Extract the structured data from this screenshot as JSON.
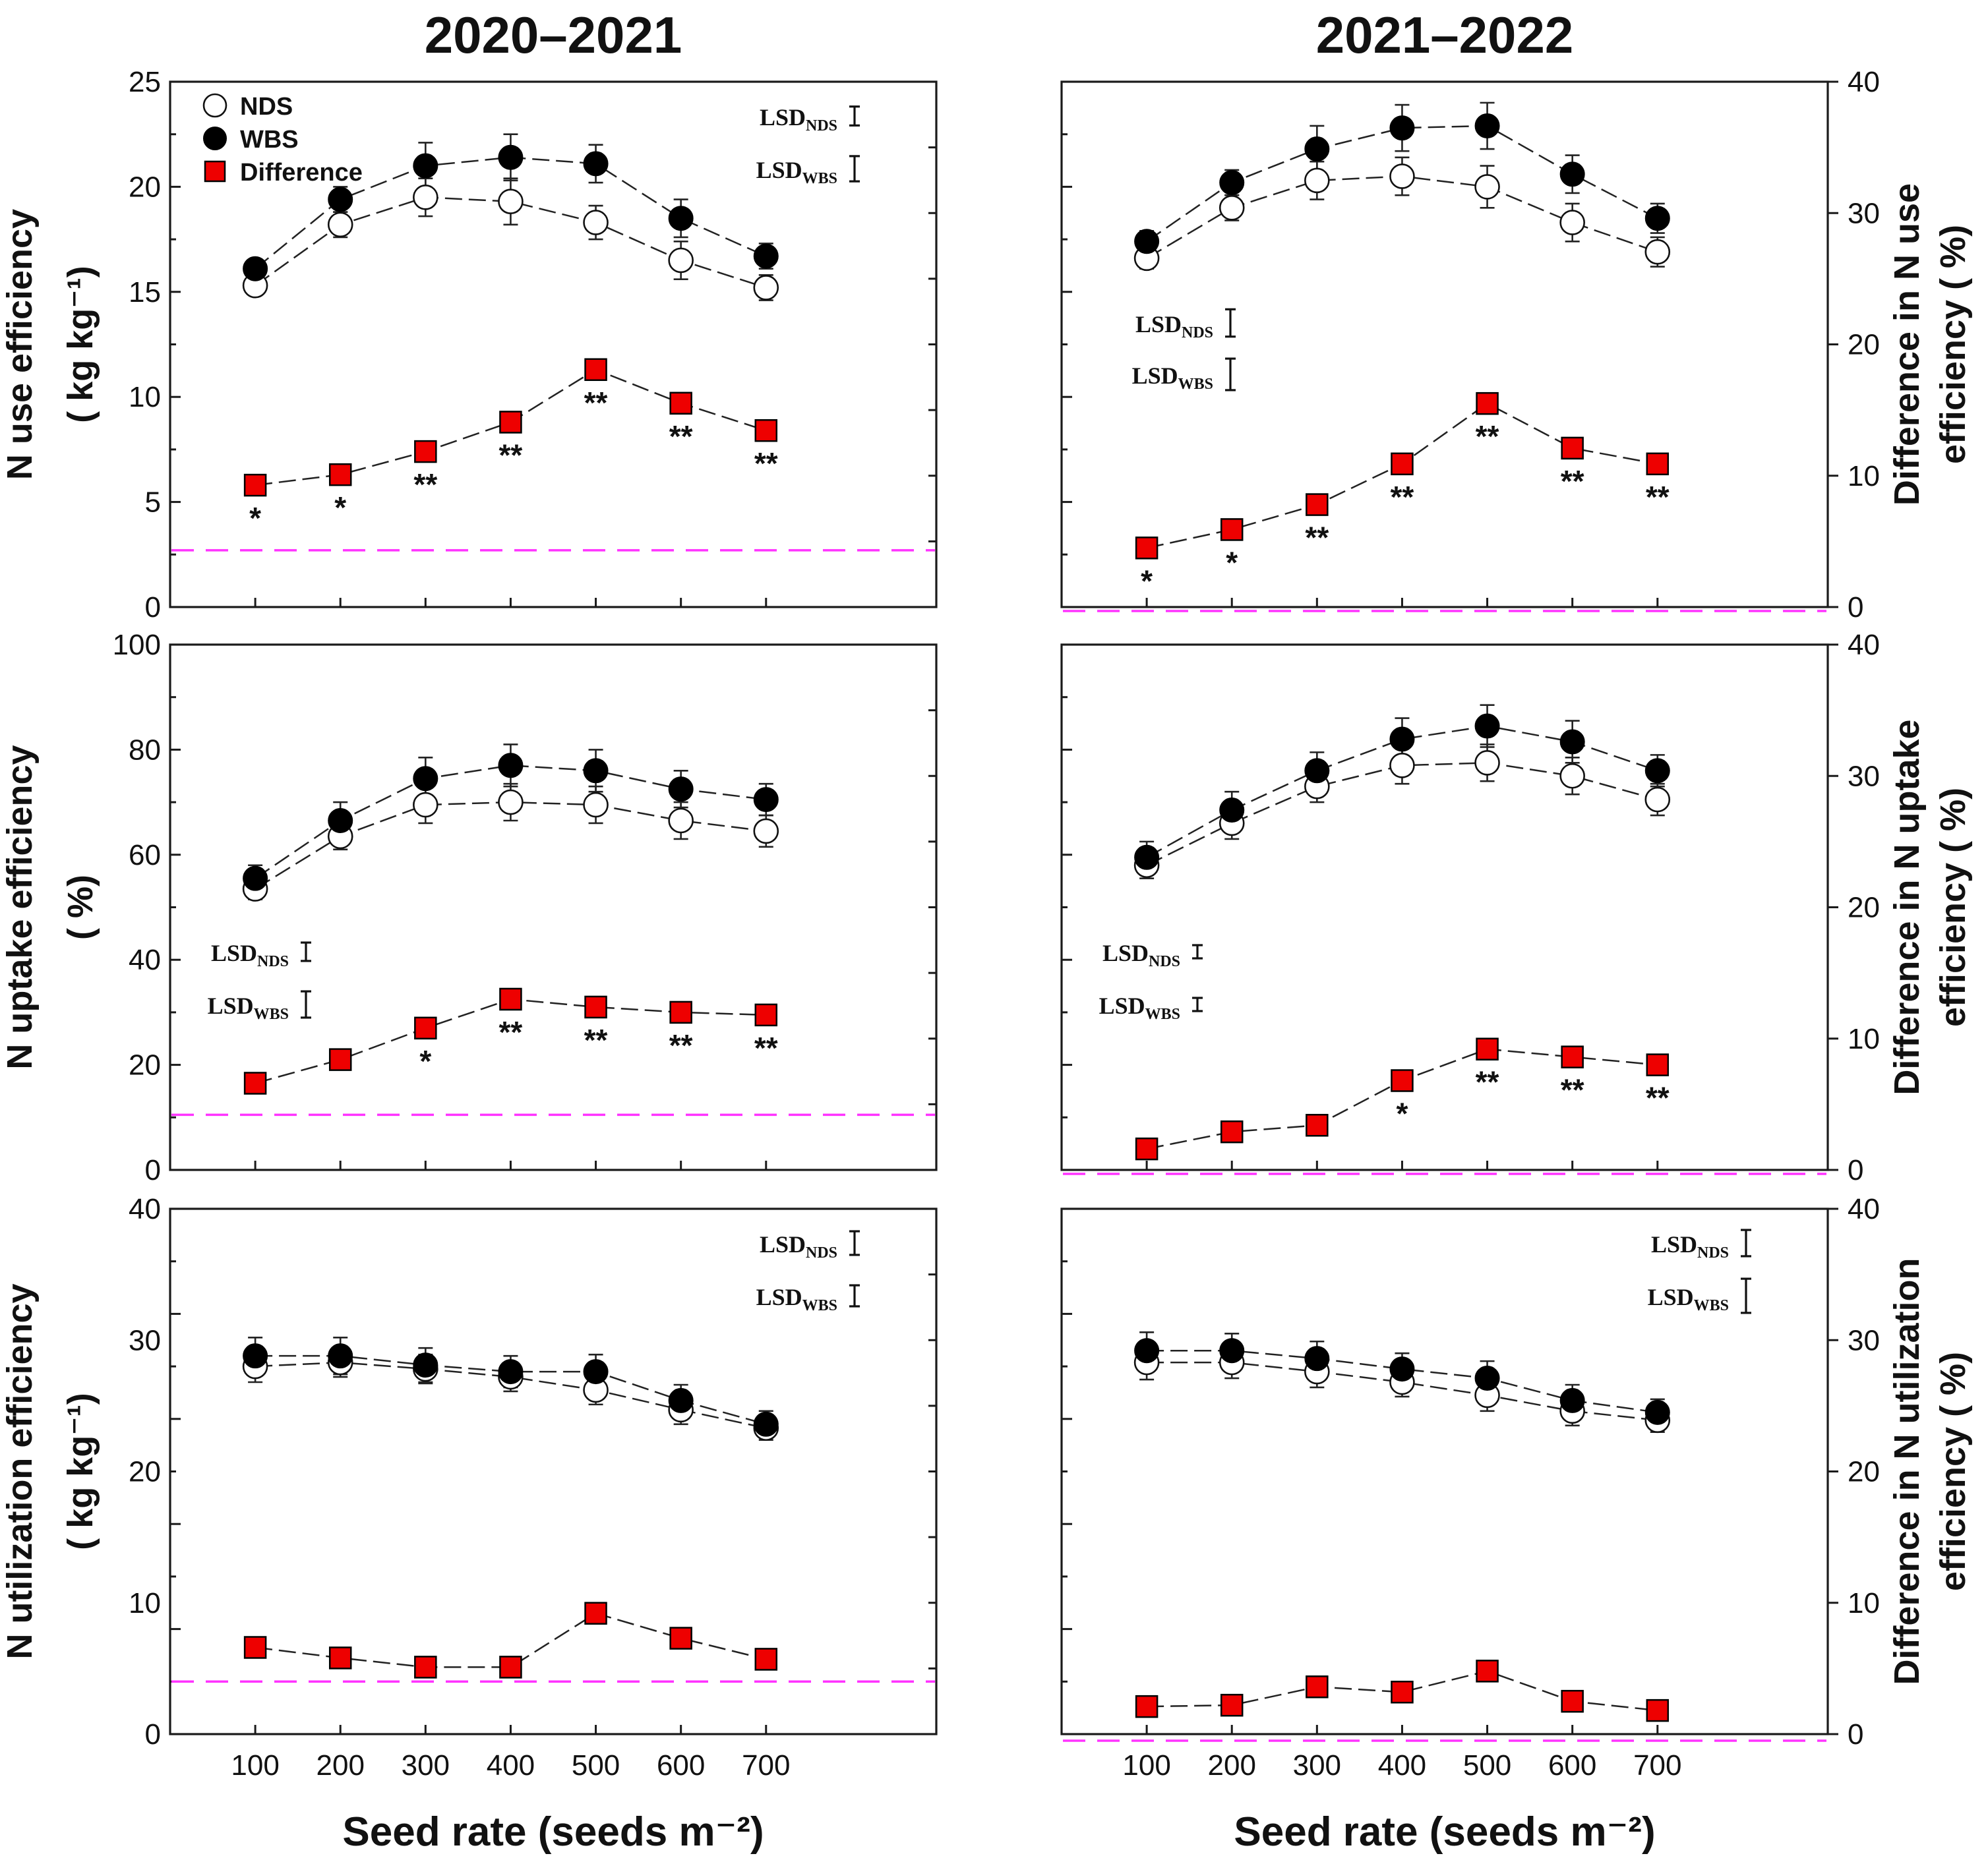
{
  "figure": {
    "column_titles": [
      "2020–2021",
      "2021–2022"
    ],
    "x_axis_title": "Seed rate (seeds m⁻²)",
    "legend": {
      "nds": "NDS",
      "wbs": "WBS",
      "difference": "Difference"
    },
    "lsd": {
      "prefix": "LSD",
      "nds_sub": "NDS",
      "wbs_sub": "WBS"
    }
  },
  "chart_data": [
    {
      "type": "line",
      "id": "nue_2020",
      "row": 0,
      "col": 0,
      "title": "2020–2021",
      "ylabel": "N use efficiency",
      "ylabel_line2": "( kg kg⁻¹)",
      "ylim": [
        0,
        25
      ],
      "yticks": [
        "0",
        "5",
        "10",
        "15",
        "20",
        "25"
      ],
      "x": [
        100,
        200,
        300,
        400,
        500,
        600,
        700
      ],
      "xticks": [
        "100",
        "200",
        "300",
        "400",
        "500",
        "600",
        "700"
      ],
      "series": [
        {
          "name": "NDS",
          "values": [
            15.3,
            18.2,
            19.5,
            19.3,
            18.3,
            16.5,
            15.2
          ],
          "err": [
            0.3,
            0.6,
            0.9,
            1.1,
            0.8,
            0.9,
            0.6
          ]
        },
        {
          "name": "WBS",
          "values": [
            16.1,
            19.4,
            21.0,
            21.4,
            21.1,
            18.5,
            16.7
          ],
          "err": [
            0.4,
            0.6,
            1.1,
            1.1,
            0.9,
            0.9,
            0.6
          ]
        },
        {
          "name": "Difference",
          "values": [
            5.8,
            6.3,
            7.4,
            8.8,
            11.3,
            9.7,
            8.4
          ]
        }
      ],
      "significance": [
        "*",
        "*",
        "**",
        "**",
        "**",
        "**",
        "**"
      ],
      "difference_zero_line": 2.7,
      "lsd_nds_value": 0.9,
      "lsd_wbs_value": 1.2
    },
    {
      "type": "line",
      "id": "nue_2021",
      "row": 0,
      "col": 1,
      "title": "2021–2022",
      "y2label": "Difference in N use",
      "y2label_line2": "efficiency ( %)",
      "ylim": [
        0,
        25
      ],
      "y2lim": [
        0,
        40
      ],
      "y2ticks": [
        "0",
        "10",
        "20",
        "30",
        "40"
      ],
      "x": [
        100,
        200,
        300,
        400,
        500,
        600,
        700
      ],
      "xticks": [
        "100",
        "200",
        "300",
        "400",
        "500",
        "600",
        "700"
      ],
      "series": [
        {
          "name": "NDS",
          "values": [
            16.6,
            19.0,
            20.3,
            20.5,
            20.0,
            18.3,
            16.9
          ],
          "err": [
            0.5,
            0.6,
            0.9,
            0.9,
            1.0,
            0.9,
            0.7
          ]
        },
        {
          "name": "WBS",
          "values": [
            17.4,
            20.2,
            21.8,
            22.8,
            22.9,
            20.6,
            18.5
          ],
          "err": [
            0.5,
            0.6,
            1.1,
            1.1,
            1.1,
            0.9,
            0.7
          ]
        },
        {
          "name": "Difference",
          "values": [
            4.5,
            5.9,
            7.8,
            10.9,
            15.5,
            12.1,
            10.9
          ],
          "axis": "y2"
        }
      ],
      "significance": [
        "*",
        "*",
        "**",
        "**",
        "**",
        "**",
        "**"
      ],
      "difference_zero_line": -0.3,
      "lsd_nds_value": 1.3,
      "lsd_wbs_value": 1.5
    },
    {
      "type": "line",
      "id": "nupe_2020",
      "row": 1,
      "col": 0,
      "ylabel": "N uptake efficiency",
      "ylabel_line2": "( %)",
      "ylim": [
        0,
        100
      ],
      "yticks": [
        "0",
        "20",
        "40",
        "60",
        "80",
        "100"
      ],
      "x": [
        100,
        200,
        300,
        400,
        500,
        600,
        700
      ],
      "xticks": [
        "100",
        "200",
        "300",
        "400",
        "500",
        "600",
        "700"
      ],
      "series": [
        {
          "name": "NDS",
          "values": [
            53.5,
            63.5,
            69.5,
            70.0,
            69.5,
            66.5,
            64.5
          ],
          "err": [
            2,
            2.5,
            3.5,
            3.5,
            3.5,
            3.5,
            3
          ]
        },
        {
          "name": "WBS",
          "values": [
            55.5,
            66.5,
            74.5,
            77.0,
            76.0,
            72.5,
            70.5
          ],
          "err": [
            2.5,
            3.5,
            4,
            4,
            4,
            3.5,
            3
          ]
        },
        {
          "name": "Difference",
          "values": [
            16.5,
            21.0,
            27.0,
            32.5,
            31.0,
            30.0,
            29.5
          ]
        }
      ],
      "significance": [
        "",
        "",
        "*",
        "**",
        "**",
        "**",
        "**"
      ],
      "difference_zero_line": 10.5,
      "lsd_nds_value": 3.5,
      "lsd_wbs_value": 5
    },
    {
      "type": "line",
      "id": "nupe_2021",
      "row": 1,
      "col": 1,
      "y2label": "Difference in N uptake",
      "y2label_line2": "efficiency ( %)",
      "ylim": [
        0,
        100
      ],
      "y2lim": [
        0,
        40
      ],
      "y2ticks": [
        "0",
        "10",
        "20",
        "30",
        "40"
      ],
      "x": [
        100,
        200,
        300,
        400,
        500,
        600,
        700
      ],
      "xticks": [
        "100",
        "200",
        "300",
        "400",
        "500",
        "600",
        "700"
      ],
      "series": [
        {
          "name": "NDS",
          "values": [
            58.0,
            66.0,
            73.0,
            77.0,
            77.5,
            75.0,
            70.5
          ],
          "err": [
            2.5,
            3,
            3,
            3.5,
            3.5,
            3.5,
            3
          ]
        },
        {
          "name": "WBS",
          "values": [
            59.5,
            68.5,
            76.0,
            82.0,
            84.5,
            81.5,
            76.0
          ],
          "err": [
            3,
            3.5,
            3.5,
            4,
            4,
            4,
            3
          ]
        },
        {
          "name": "Difference",
          "values": [
            1.6,
            2.9,
            3.4,
            6.8,
            9.2,
            8.6,
            8.0
          ],
          "axis": "y2"
        }
      ],
      "significance": [
        "",
        "",
        "",
        "*",
        "**",
        "**",
        "**"
      ],
      "difference_zero_line": -0.3,
      "lsd_nds_value": 1.6,
      "lsd_wbs_value": 1.4
    },
    {
      "type": "line",
      "id": "nute_2020",
      "row": 2,
      "col": 0,
      "ylabel": "N utilization efficiency",
      "ylabel_line2": "( kg kg⁻¹)",
      "ylim": [
        0,
        40
      ],
      "yticks": [
        "0",
        "10",
        "20",
        "30",
        "40"
      ],
      "x": [
        100,
        200,
        300,
        400,
        500,
        600,
        700
      ],
      "xticks": [
        "100",
        "200",
        "300",
        "400",
        "500",
        "600",
        "700"
      ],
      "series": [
        {
          "name": "NDS",
          "values": [
            28.0,
            28.3,
            27.8,
            27.2,
            26.2,
            24.7,
            23.3
          ],
          "err": [
            1.2,
            1.1,
            1.1,
            1.1,
            1.1,
            1.1,
            0.9
          ]
        },
        {
          "name": "WBS",
          "values": [
            28.8,
            28.8,
            28.1,
            27.6,
            27.6,
            25.4,
            23.6
          ],
          "err": [
            1.4,
            1.4,
            1.3,
            1.2,
            1.3,
            1.2,
            1.0
          ]
        },
        {
          "name": "Difference",
          "values": [
            6.6,
            5.8,
            5.1,
            5.1,
            9.2,
            7.3,
            5.7
          ]
        }
      ],
      "significance": [
        "",
        "",
        "",
        "",
        "",
        "",
        ""
      ],
      "difference_zero_line": 4.0,
      "lsd_nds_value": 1.8,
      "lsd_wbs_value": 1.6
    },
    {
      "type": "line",
      "id": "nute_2021",
      "row": 2,
      "col": 1,
      "y2label": "Difference in N utilization",
      "y2label_line2": "efficiency ( %)",
      "ylim": [
        0,
        40
      ],
      "y2lim": [
        0,
        40
      ],
      "y2ticks": [
        "0",
        "10",
        "20",
        "30",
        "40"
      ],
      "x": [
        100,
        200,
        300,
        400,
        500,
        600,
        700
      ],
      "xticks": [
        "100",
        "200",
        "300",
        "400",
        "500",
        "600",
        "700"
      ],
      "series": [
        {
          "name": "NDS",
          "values": [
            28.3,
            28.3,
            27.6,
            26.8,
            25.8,
            24.6,
            23.9
          ],
          "err": [
            1.3,
            1.2,
            1.2,
            1.1,
            1.2,
            1.1,
            0.9
          ]
        },
        {
          "name": "WBS",
          "values": [
            29.2,
            29.2,
            28.6,
            27.8,
            27.1,
            25.4,
            24.5
          ],
          "err": [
            1.4,
            1.3,
            1.3,
            1.2,
            1.3,
            1.2,
            1.0
          ]
        },
        {
          "name": "Difference",
          "values": [
            2.1,
            2.2,
            3.6,
            3.2,
            4.8,
            2.5,
            1.8
          ],
          "axis": "y2"
        }
      ],
      "significance": [
        "",
        "",
        "",
        "",
        "",
        "",
        ""
      ],
      "difference_zero_line": -0.5,
      "lsd_nds_value": 2.0,
      "lsd_wbs_value": 2.6
    }
  ]
}
